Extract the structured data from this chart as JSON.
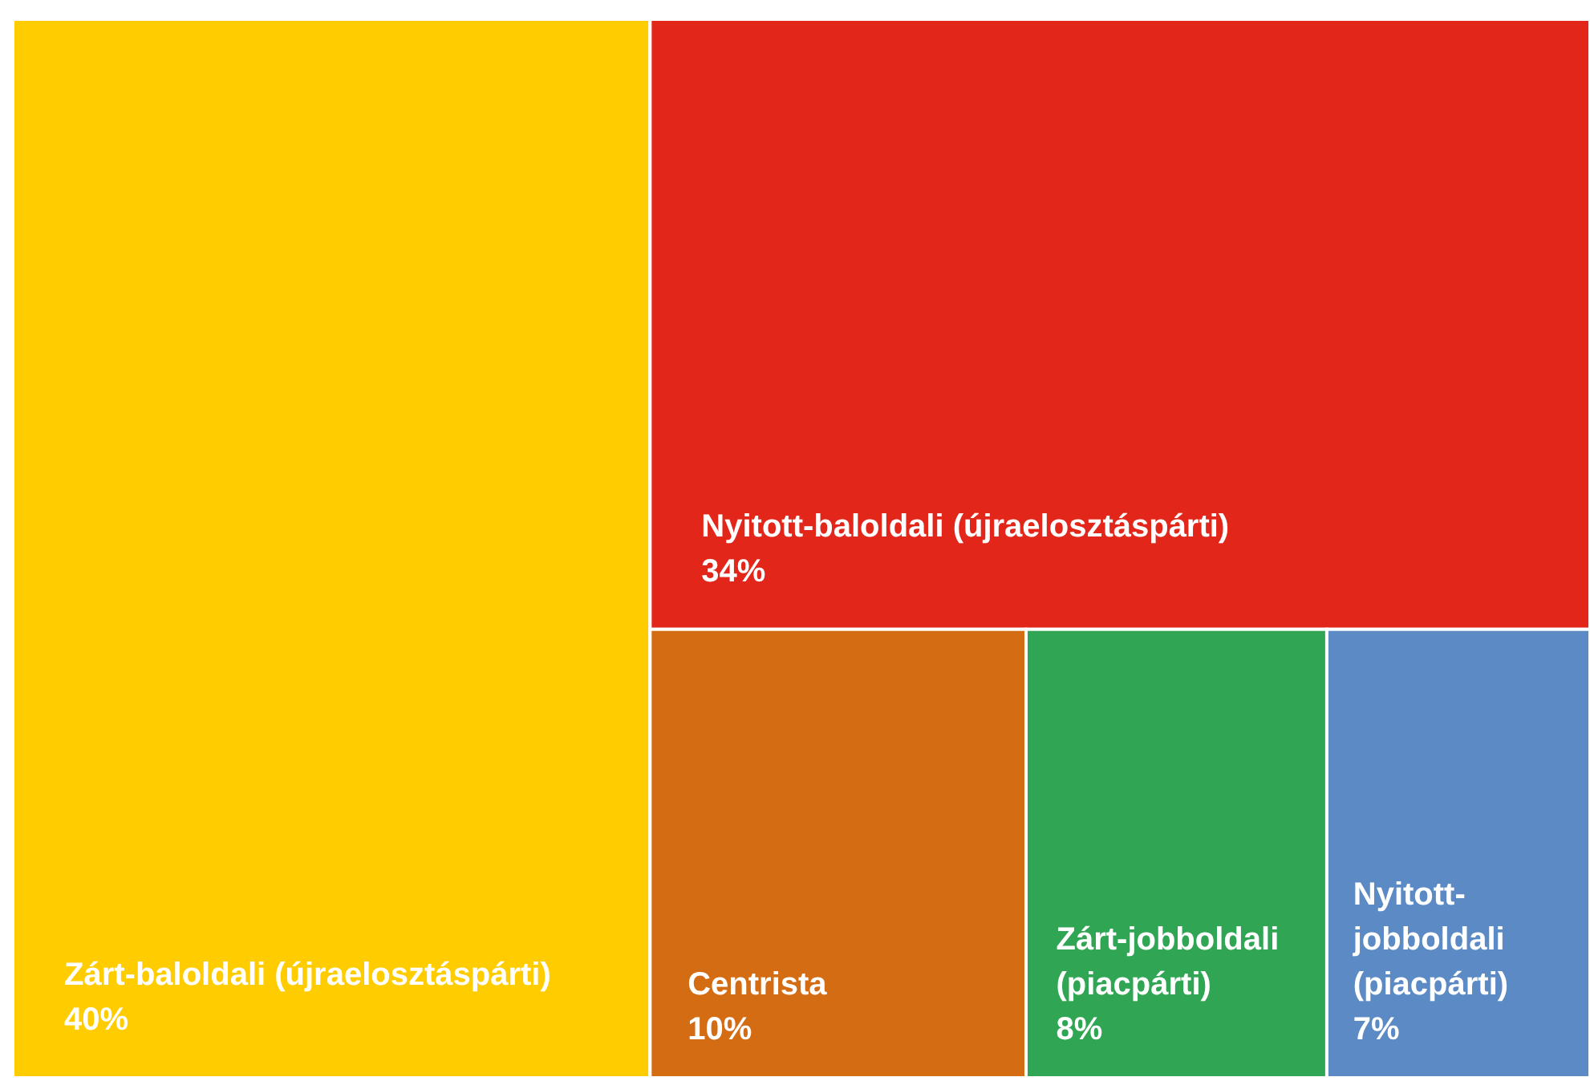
{
  "chart_data": {
    "type": "other",
    "categories": [
      "Zárt-baloldali (újraelosztáspárti)",
      "Nyitott-baloldali (újraelosztáspárti)",
      "Centrista",
      "Zárt-jobboldali (piacpárti)",
      "Nyitott-jobboldali (piacpárti)"
    ],
    "values": [
      40,
      34,
      10,
      8,
      7
    ],
    "colors": [
      "#ffcc00",
      "#e3261a",
      "#d36c12",
      "#30a553",
      "#5b8ac4"
    ],
    "value_labels": [
      "40%",
      "34%",
      "10%",
      "8%",
      "7%"
    ]
  }
}
